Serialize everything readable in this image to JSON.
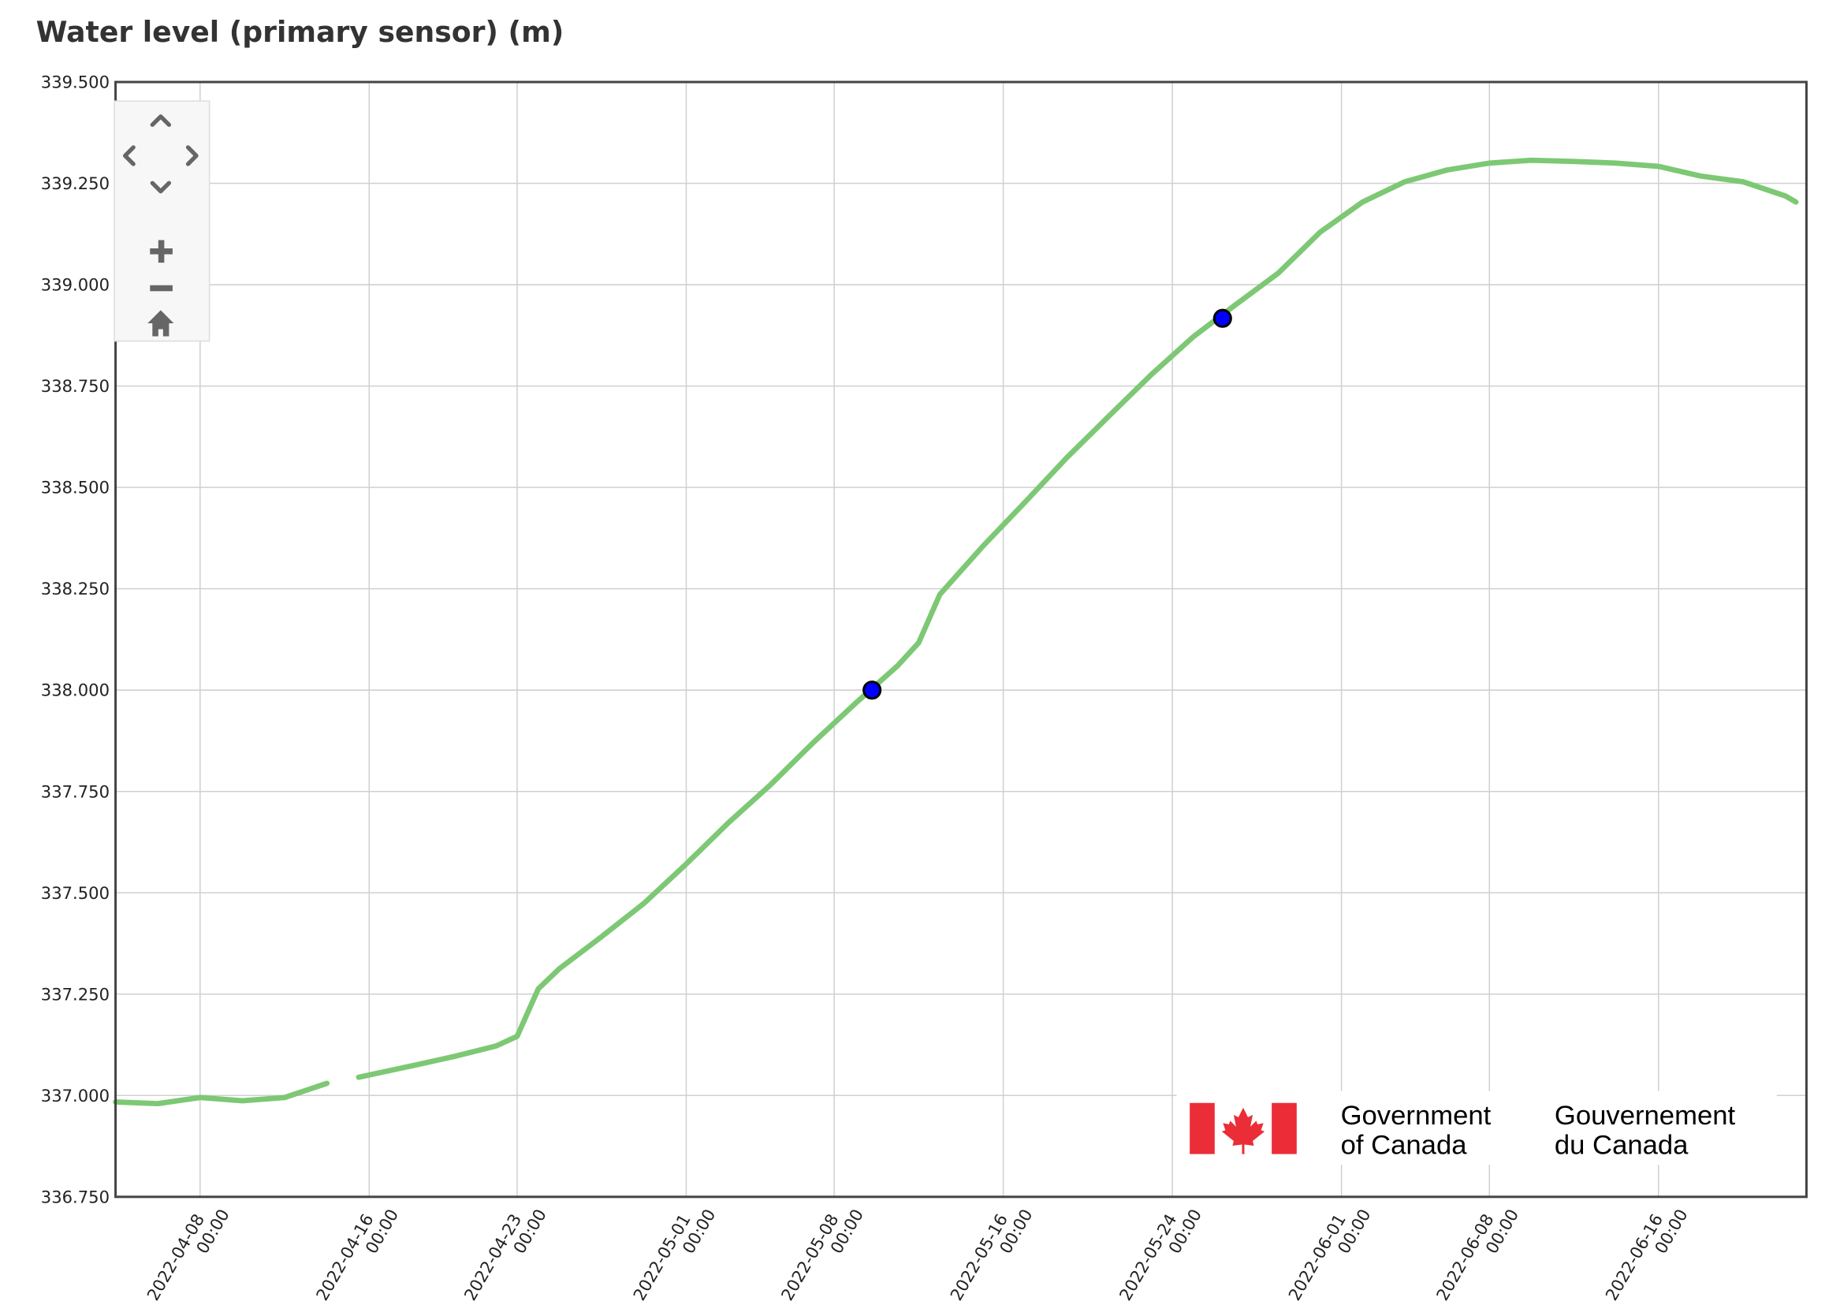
{
  "chart_data": {
    "type": "line",
    "title": "Water level (primary sensor) (m)",
    "xlim": [
      "2022-04-04 00:00",
      "2022-06-23 00:00"
    ],
    "xticks": [
      "2022-04-08 00:00",
      "2022-04-16 00:00",
      "2022-04-23 00:00",
      "2022-05-01 00:00",
      "2022-05-08 00:00",
      "2022-05-16 00:00",
      "2022-05-24 00:00",
      "2022-06-01 00:00",
      "2022-06-08 00:00",
      "2022-06-16 00:00"
    ],
    "ylim": [
      336.75,
      339.5
    ],
    "yticks": [
      {
        "value": 336.75,
        "label": "336.750"
      },
      {
        "value": 337,
        "label": "337.000"
      },
      {
        "value": 337.25,
        "label": "337.250"
      },
      {
        "value": 337.5,
        "label": "337.500"
      },
      {
        "value": 337.75,
        "label": "337.750"
      },
      {
        "value": 338,
        "label": "338.000"
      },
      {
        "value": 338.25,
        "label": "338.250"
      },
      {
        "value": 338.5,
        "label": "338.500"
      },
      {
        "value": 338.75,
        "label": "338.750"
      },
      {
        "value": 339,
        "label": "339.000"
      },
      {
        "value": 339.25,
        "label": "339.250"
      },
      {
        "value": 339.5,
        "label": "339.500"
      }
    ],
    "grid": true,
    "series": [
      {
        "color": "#7dc874",
        "style": "line",
        "x": [
          "2022-04-04 00:00",
          "2022-04-06 00:00",
          "2022-04-08 00:00",
          "2022-04-10 00:00",
          "2022-04-12 00:00",
          "2022-04-14 00:00",
          "2022-04-14 12:00",
          "2022-04-15 12:00",
          "2022-04-18 00:00",
          "2022-04-20 00:00",
          "2022-04-22 00:00",
          "2022-04-23 00:00",
          "2022-04-24 00:00",
          "2022-04-25 00:00",
          "2022-04-27 00:00",
          "2022-04-29 00:00",
          "2022-05-01 00:00",
          "2022-05-03 00:00",
          "2022-05-05 00:00",
          "2022-05-07 00:00",
          "2022-05-09 00:00",
          "2022-05-11 00:00",
          "2022-05-12 00:00",
          "2022-05-13 00:00",
          "2022-05-15 00:00",
          "2022-05-17 00:00",
          "2022-05-19 00:00",
          "2022-05-21 00:00",
          "2022-05-23 00:00",
          "2022-05-25 00:00",
          "2022-05-27 00:00",
          "2022-05-29 00:00",
          "2022-05-31 00:00",
          "2022-06-02 00:00",
          "2022-06-04 00:00",
          "2022-06-06 00:00",
          "2022-06-08 00:00",
          "2022-06-10 00:00",
          "2022-06-12 00:00",
          "2022-06-14 00:00",
          "2022-06-16 00:00",
          "2022-06-18 00:00",
          "2022-06-20 00:00",
          "2022-06-22 00:00",
          "2022-06-22 12:00"
        ],
        "values": [
          336.984,
          336.98,
          336.995,
          336.987,
          336.995,
          337.03,
          null,
          337.045,
          337.073,
          337.096,
          337.122,
          337.146,
          337.263,
          337.313,
          337.392,
          337.474,
          337.571,
          337.673,
          337.767,
          337.87,
          337.967,
          338.06,
          338.117,
          338.236,
          338.353,
          338.462,
          338.573,
          338.676,
          338.778,
          338.872,
          338.951,
          339.028,
          339.13,
          339.204,
          339.254,
          339.283,
          339.3,
          339.307,
          339.304,
          339.3,
          339.292,
          339.268,
          339.254,
          339.219,
          339.204
        ]
      },
      {
        "color": "#0000ff",
        "style": "markers",
        "x": [
          "2022-05-09 19:00",
          "2022-05-26 09:00"
        ],
        "values": [
          338.0,
          338.917
        ]
      }
    ]
  },
  "logo": {
    "en": [
      "Government",
      "of Canada"
    ],
    "fr": [
      "Gouvernement",
      "du Canada"
    ]
  }
}
